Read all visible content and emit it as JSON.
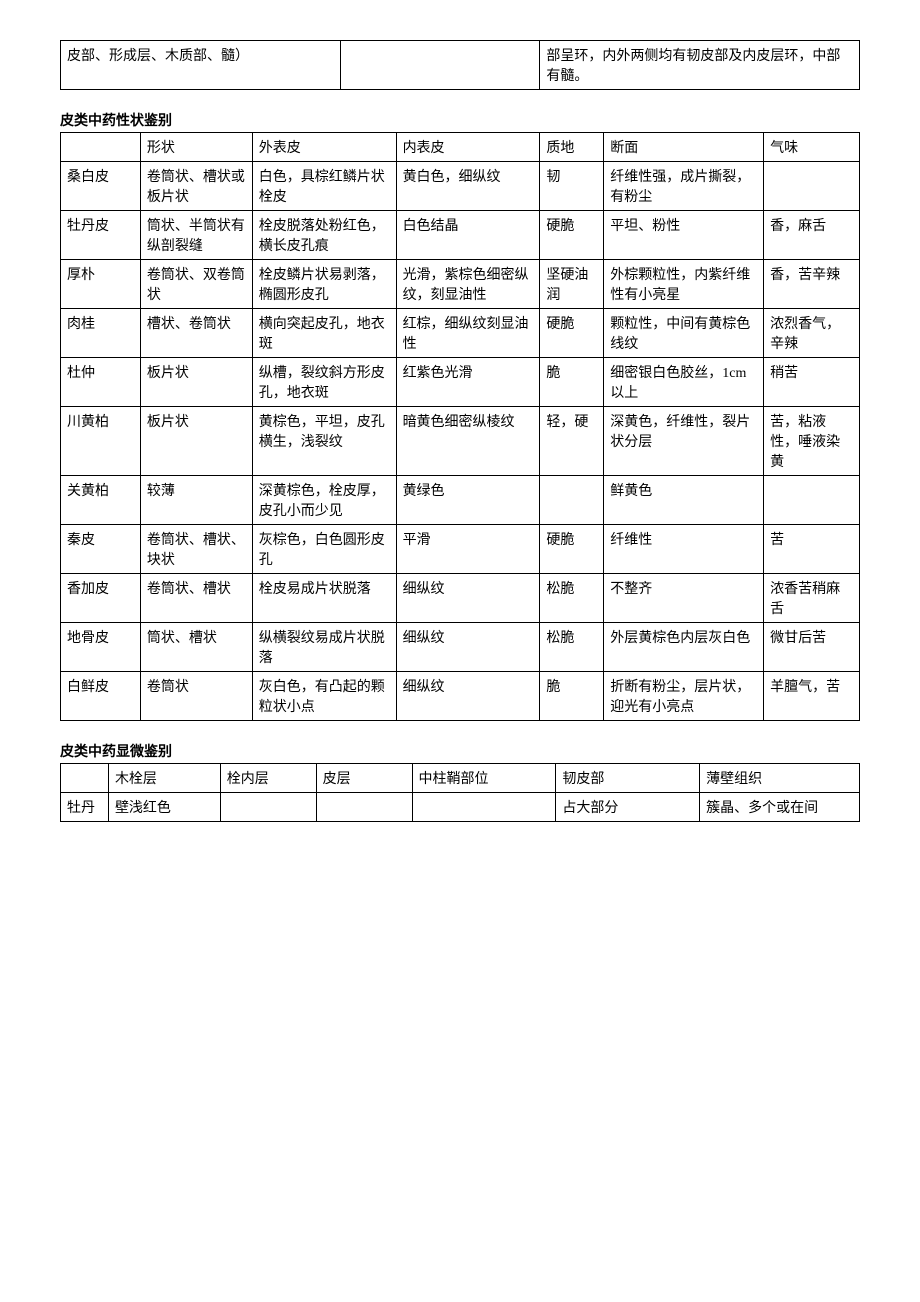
{
  "table1": {
    "rows": [
      [
        "皮部、形成层、木质部、髓）",
        "",
        "部呈环，内外两侧均有韧皮部及内皮层环，中部有髓。"
      ]
    ]
  },
  "section2_title": "皮类中药性状鉴别",
  "table2": {
    "headers": [
      "",
      "形状",
      "外表皮",
      "内表皮",
      "质地",
      "断面",
      "气味"
    ],
    "rows": [
      [
        "桑白皮",
        "卷筒状、槽状或板片状",
        "白色，具棕红鳞片状栓皮",
        "黄白色，细纵纹",
        "韧",
        "纤维性强，成片撕裂，有粉尘",
        ""
      ],
      [
        "牡丹皮",
        "筒状、半筒状有纵剖裂缝",
        "栓皮脱落处粉红色，横长皮孔痕",
        "白色结晶",
        "硬脆",
        "平坦、粉性",
        "香，麻舌"
      ],
      [
        "厚朴",
        "卷筒状、双卷筒状",
        "栓皮鳞片状易剥落，椭圆形皮孔",
        "光滑，紫棕色细密纵纹，刻显油性",
        "坚硬油润",
        "外棕颗粒性，内紫纤维性有小亮星",
        "香，苦辛辣"
      ],
      [
        "肉桂",
        "槽状、卷筒状",
        "横向突起皮孔，地衣斑",
        "红棕，细纵纹刻显油性",
        "硬脆",
        "颗粒性，中间有黄棕色线纹",
        "浓烈香气，辛辣"
      ],
      [
        "杜仲",
        "板片状",
        "纵槽，裂纹斜方形皮孔，地衣斑",
        "红紫色光滑",
        "脆",
        "细密银白色胶丝，1cm 以上",
        "稍苦"
      ],
      [
        "川黄柏",
        "板片状",
        "黄棕色，平坦，皮孔横生，浅裂纹",
        "暗黄色细密纵棱纹",
        "轻，硬",
        "深黄色，纤维性，裂片状分层",
        "苦，粘液性，唾液染黄"
      ],
      [
        "关黄柏",
        "较薄",
        "深黄棕色，栓皮厚，皮孔小而少见",
        "黄绿色",
        "",
        "鲜黄色",
        ""
      ],
      [
        "秦皮",
        "卷筒状、槽状、块状",
        "灰棕色，白色圆形皮孔",
        "平滑",
        "硬脆",
        "纤维性",
        "苦"
      ],
      [
        "香加皮",
        "卷筒状、槽状",
        "栓皮易成片状脱落",
        "细纵纹",
        "松脆",
        "不整齐",
        "浓香苦稍麻舌"
      ],
      [
        "地骨皮",
        "筒状、槽状",
        "纵横裂纹易成片状脱落",
        "细纵纹",
        "松脆",
        "外层黄棕色内层灰白色",
        "微甘后苦"
      ],
      [
        "白鲜皮",
        "卷筒状",
        "灰白色，有凸起的颗粒状小点",
        "细纵纹",
        "脆",
        "折断有粉尘，层片状，迎光有小亮点",
        "羊膻气，苦"
      ]
    ]
  },
  "section3_title": "皮类中药显微鉴别",
  "table3": {
    "headers": [
      "",
      "木栓层",
      "栓内层",
      "皮层",
      "中柱鞘部位",
      "韧皮部",
      "薄壁组织"
    ],
    "rows": [
      [
        "牡丹",
        "壁浅红色",
        "",
        "",
        "",
        "占大部分",
        "簇晶、多个或在间"
      ]
    ]
  },
  "style": {
    "font_family": "SimSun",
    "font_size_pt": 10.5,
    "text_color": "#000000",
    "background_color": "#ffffff",
    "border_color": "#000000",
    "title_weight": "bold"
  }
}
